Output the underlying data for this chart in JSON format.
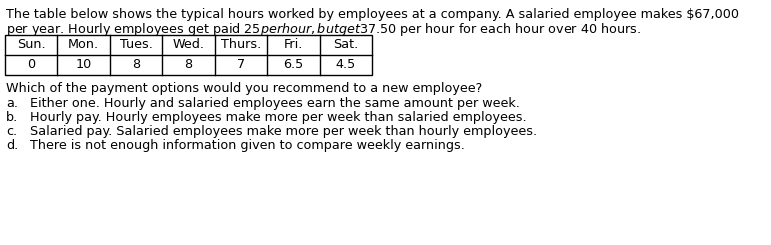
{
  "intro_text_line1": "The table below shows the typical hours worked by employees at a company. A salaried employee makes $67,000",
  "intro_text_line2": "per year. Hourly employees get paid $25 per hour, but get $37.50 per hour for each hour over 40 hours.",
  "table_headers": [
    "Sun.",
    "Mon.",
    "Tues.",
    "Wed.",
    "Thurs.",
    "Fri.",
    "Sat."
  ],
  "table_values": [
    "0",
    "10",
    "8",
    "8",
    "7",
    "6.5",
    "4.5"
  ],
  "question": "Which of the payment options would you recommend to a new employee?",
  "options": [
    [
      "a.",
      "Either one. Hourly and salaried employees earn the same amount per week."
    ],
    [
      "b.",
      "Hourly pay. Hourly employees make more per week than salaried employees."
    ],
    [
      "c.",
      "Salaried pay. Salaried employees make more per week than hourly employees."
    ],
    [
      "d.",
      "There is not enough information given to compare weekly earnings."
    ]
  ],
  "font_size": 9.2,
  "text_color": "#000000",
  "bg_color": "#ffffff",
  "table_border_color": "#000000"
}
